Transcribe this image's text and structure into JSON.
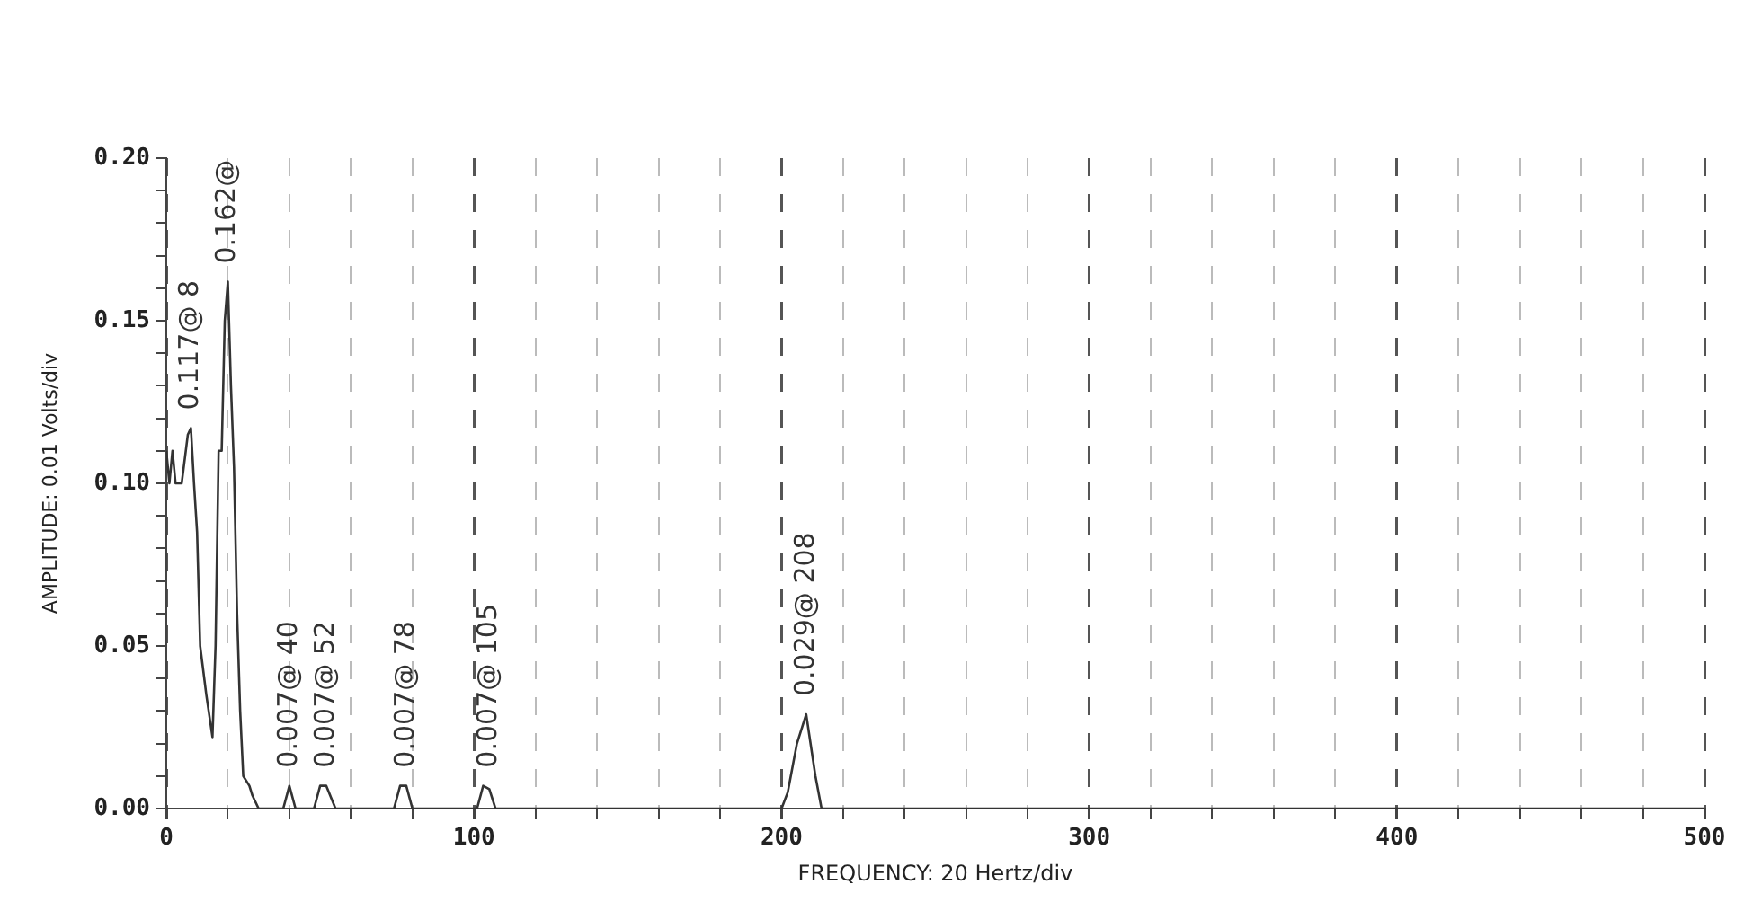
{
  "chart_data": {
    "type": "line",
    "xlabel": "FREQUENCY: 20 Hertz/div",
    "ylabel": "AMPLITUDE: 0.01 Volts/div",
    "x": [
      0,
      1,
      2,
      3,
      5,
      7,
      8,
      9,
      10,
      11,
      13,
      15,
      16,
      17,
      18,
      19,
      20,
      21,
      22,
      23,
      24,
      25,
      27,
      28,
      30,
      38,
      40,
      42,
      48,
      50,
      52,
      55,
      74,
      76,
      78,
      80,
      101,
      103,
      105,
      107,
      200,
      202,
      205,
      208,
      211,
      213,
      500
    ],
    "series": [
      {
        "color": "#333333",
        "values": [
          0.11,
          0.1,
          0.11,
          0.1,
          0.1,
          0.115,
          0.117,
          0.1,
          0.085,
          0.05,
          0.035,
          0.022,
          0.05,
          0.11,
          0.11,
          0.15,
          0.162,
          0.13,
          0.105,
          0.06,
          0.03,
          0.01,
          0.007,
          0.004,
          0,
          0,
          0.007,
          0,
          0,
          0.007,
          0.007,
          0,
          0,
          0.007,
          0.007,
          0,
          0,
          0.007,
          0.006,
          0,
          0,
          0.005,
          0.02,
          0.029,
          0.01,
          0,
          0
        ]
      }
    ],
    "xlim": [
      0,
      500
    ],
    "xticks": [
      0,
      {
        "value": 20,
        "label": null
      },
      {
        "value": 40,
        "label": null
      },
      {
        "value": 60,
        "label": null
      },
      {
        "value": 80,
        "label": null
      },
      100,
      {
        "value": 120,
        "label": null
      },
      {
        "value": 140,
        "label": null
      },
      {
        "value": 160,
        "label": null
      },
      {
        "value": 180,
        "label": null
      },
      200,
      {
        "value": 220,
        "label": null
      },
      {
        "value": 240,
        "label": null
      },
      {
        "value": 260,
        "label": null
      },
      {
        "value": 280,
        "label": null
      },
      300,
      {
        "value": 320,
        "label": null
      },
      {
        "value": 340,
        "label": null
      },
      {
        "value": 360,
        "label": null
      },
      {
        "value": 380,
        "label": null
      },
      400,
      {
        "value": 420,
        "label": null
      },
      {
        "value": 440,
        "label": null
      },
      {
        "value": 460,
        "label": null
      },
      {
        "value": 480,
        "label": null
      },
      500
    ],
    "ylim": [
      0,
      0.2
    ],
    "yticks": [
      {
        "value": 0,
        "label": "0.00"
      },
      {
        "value": 0.01,
        "label": null
      },
      {
        "value": 0.02,
        "label": null
      },
      {
        "value": 0.03,
        "label": null
      },
      {
        "value": 0.04,
        "label": null
      },
      {
        "value": 0.05,
        "label": "0.05"
      },
      {
        "value": 0.06,
        "label": null
      },
      {
        "value": 0.07,
        "label": null
      },
      {
        "value": 0.08,
        "label": null
      },
      {
        "value": 0.09,
        "label": null
      },
      {
        "value": 0.1,
        "label": "0.10"
      },
      {
        "value": 0.11,
        "label": null
      },
      {
        "value": 0.12,
        "label": null
      },
      {
        "value": 0.13,
        "label": null
      },
      {
        "value": 0.14,
        "label": null
      },
      {
        "value": 0.15,
        "label": "0.15"
      },
      {
        "value": 0.16,
        "label": null
      },
      {
        "value": 0.17,
        "label": null
      },
      {
        "value": 0.18,
        "label": null
      },
      {
        "value": 0.19,
        "label": null
      },
      {
        "value": 0.2,
        "label": "0.20"
      }
    ],
    "grid": true,
    "legend": false,
    "marker": "none",
    "line_style": "solid",
    "annotations": [
      {
        "text": "0.117@ 8",
        "x": 8,
        "y": 0.117
      },
      {
        "text": "0.162@",
        "x": 20,
        "y": 0.162
      },
      {
        "text": "0.007@ 40",
        "x": 40,
        "y": 0.007
      },
      {
        "text": "0.007@ 52",
        "x": 52,
        "y": 0.007
      },
      {
        "text": "0.007@ 78",
        "x": 78,
        "y": 0.007
      },
      {
        "text": "0.007@ 105",
        "x": 105,
        "y": 0.007
      },
      {
        "text": "0.029@ 208",
        "x": 208,
        "y": 0.029
      }
    ]
  }
}
